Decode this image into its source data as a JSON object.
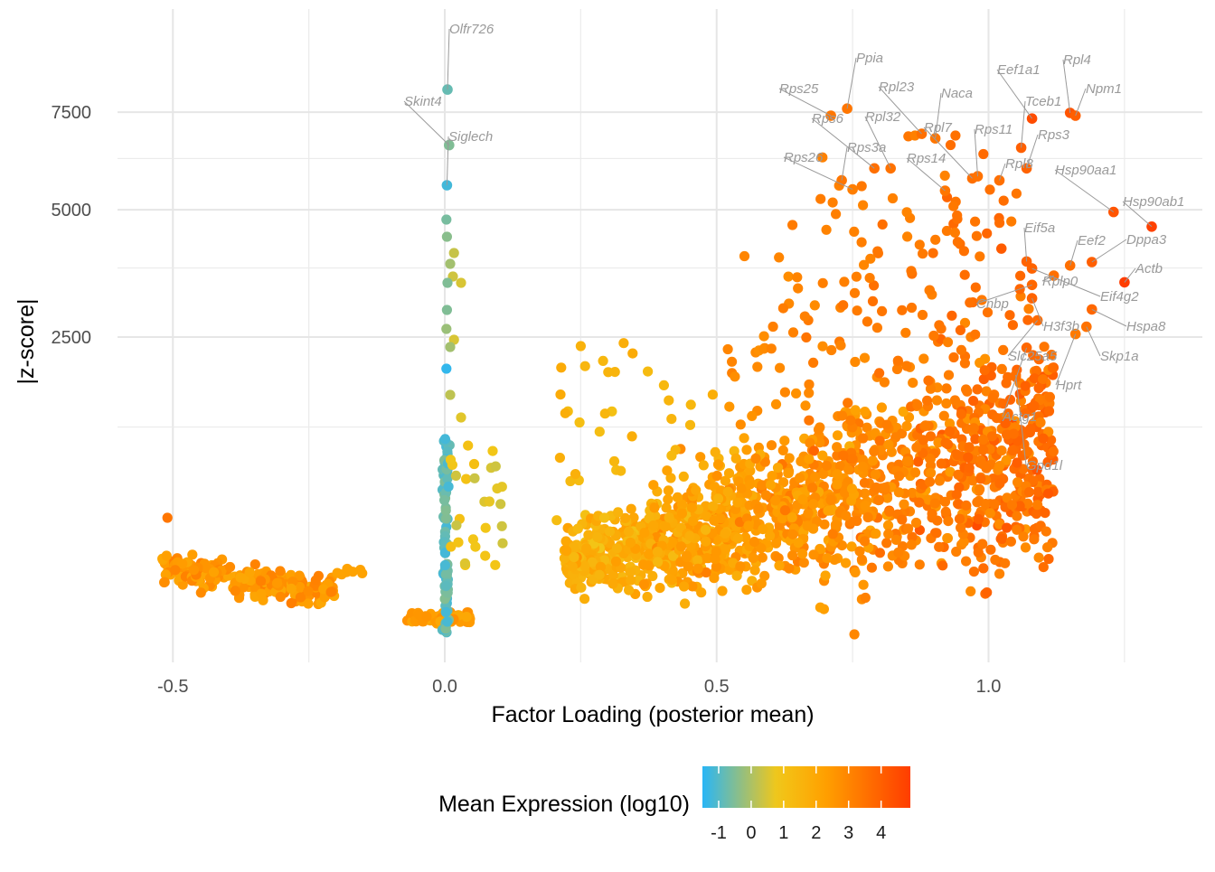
{
  "chart_data": {
    "type": "scatter",
    "xlabel": "Factor Loading (posterior mean)",
    "ylabel": "|z-score|",
    "x_ticks": [
      -0.5,
      0.0,
      0.5,
      1.0
    ],
    "x_tick_labels": [
      "-0.5",
      "0.0",
      "0.5",
      "1.0"
    ],
    "xlim": [
      -0.62,
      1.4
    ],
    "y_scale": "sqrt",
    "y_ticks": [
      2500,
      5000,
      7500
    ],
    "y_tick_labels": [
      "2500",
      "5000",
      "7500"
    ],
    "ylim": [
      0,
      8500
    ],
    "grid": true,
    "legend": {
      "title": "Mean Expression (log10)",
      "position": "bottom",
      "type": "colorbar",
      "ticks": [
        -1,
        0,
        1,
        2,
        3,
        4
      ],
      "tick_labels": [
        "-1",
        "0",
        "1",
        "2",
        "3",
        "4"
      ],
      "range": [
        -1.5,
        4.9
      ],
      "colors": [
        "#29b6f6",
        "#f2c718",
        "#ffa000",
        "#ff3d00"
      ]
    },
    "labeled_points": [
      {
        "gene": "Olfr726",
        "x": 0.005,
        "y": 8150,
        "expr": -0.8
      },
      {
        "gene": "Skint4",
        "x": 0.008,
        "y": 6600,
        "expr": -0.5
      },
      {
        "gene": "Siglech",
        "x": 0.004,
        "y": 5580,
        "expr": -1.2
      },
      {
        "gene": "Ppia",
        "x": 0.74,
        "y": 7600,
        "expr": 3.4
      },
      {
        "gene": "Rps25",
        "x": 0.71,
        "y": 7400,
        "expr": 3.4
      },
      {
        "gene": "Rpl23",
        "x": 0.877,
        "y": 6900,
        "expr": 3.6
      },
      {
        "gene": "Naca",
        "x": 0.902,
        "y": 6780,
        "expr": 3.4
      },
      {
        "gene": "Eef1a1",
        "x": 1.08,
        "y": 7320,
        "expr": 4.5
      },
      {
        "gene": "Rpl4",
        "x": 1.15,
        "y": 7480,
        "expr": 4.3
      },
      {
        "gene": "Npm1",
        "x": 1.16,
        "y": 7400,
        "expr": 4.0
      },
      {
        "gene": "Tceb1",
        "x": 1.06,
        "y": 6530,
        "expr": 4.0
      },
      {
        "gene": "Rps6",
        "x": 0.79,
        "y": 6000,
        "expr": 3.6
      },
      {
        "gene": "Rpl32",
        "x": 0.82,
        "y": 6000,
        "expr": 3.5
      },
      {
        "gene": "Rpl7",
        "x": 0.97,
        "y": 5750,
        "expr": 3.6
      },
      {
        "gene": "Rps11",
        "x": 0.98,
        "y": 5800,
        "expr": 3.5
      },
      {
        "gene": "Rps3",
        "x": 1.07,
        "y": 6000,
        "expr": 3.9
      },
      {
        "gene": "Rps3a",
        "x": 0.73,
        "y": 5700,
        "expr": 3.4
      },
      {
        "gene": "Rps26",
        "x": 0.75,
        "y": 5480,
        "expr": 3.2
      },
      {
        "gene": "Rps14",
        "x": 0.92,
        "y": 5450,
        "expr": 3.4
      },
      {
        "gene": "Rpl8",
        "x": 1.02,
        "y": 5700,
        "expr": 3.6
      },
      {
        "gene": "Hsp90aa1",
        "x": 1.23,
        "y": 4950,
        "expr": 4.3
      },
      {
        "gene": "Hsp90ab1",
        "x": 1.3,
        "y": 4620,
        "expr": 4.8
      },
      {
        "gene": "Eif5a",
        "x": 1.07,
        "y": 3880,
        "expr": 3.9
      },
      {
        "gene": "Eef2",
        "x": 1.15,
        "y": 3800,
        "expr": 3.6
      },
      {
        "gene": "Dppa3",
        "x": 1.19,
        "y": 3870,
        "expr": 4.0
      },
      {
        "gene": "Actb",
        "x": 1.25,
        "y": 3470,
        "expr": 4.9
      },
      {
        "gene": "Rplp0",
        "x": 1.12,
        "y": 3600,
        "expr": 3.6
      },
      {
        "gene": "Eif4g2",
        "x": 1.08,
        "y": 3740,
        "expr": 3.9
      },
      {
        "gene": "Cnbp",
        "x": 1.08,
        "y": 3420,
        "expr": 3.8
      },
      {
        "gene": "H3f3b",
        "x": 1.08,
        "y": 3170,
        "expr": 3.9
      },
      {
        "gene": "Hspa8",
        "x": 1.19,
        "y": 2970,
        "expr": 3.8
      },
      {
        "gene": "Slc25a5",
        "x": 1.09,
        "y": 2780,
        "expr": 3.7
      },
      {
        "gene": "Skp1a",
        "x": 1.18,
        "y": 2670,
        "expr": 3.5
      },
      {
        "gene": "Hprt",
        "x": 1.16,
        "y": 2550,
        "expr": 3.3
      },
      {
        "gene": "Actg1",
        "x": 1.07,
        "y": 2330,
        "expr": 3.8
      },
      {
        "gene": "Gpd1l",
        "x": 1.05,
        "y": 1920,
        "expr": 3.6
      }
    ]
  }
}
